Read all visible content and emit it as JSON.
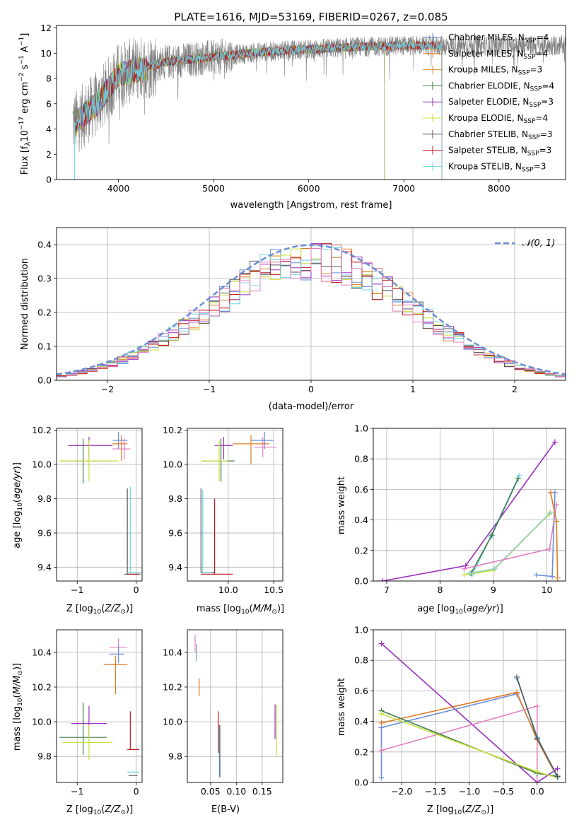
{
  "chart_data": [
    {
      "type": "line",
      "title": "PLATE=1616, MJD=53169, FIBERID=0267, z=0.085",
      "xlabel": "wavelength [Angstrom, rest frame]",
      "ylabel": "Flux [fλ10⁻¹⁷ erg cm⁻² s⁻¹ A⁻¹]",
      "xlim": [
        3350,
        8700
      ],
      "ylim": [
        0,
        12.2
      ],
      "xticks": [
        4000,
        5000,
        6000,
        7000,
        8000
      ],
      "yticks": [
        0,
        2,
        4,
        6,
        8,
        10,
        12
      ],
      "legend_position": "right",
      "series": [
        {
          "name": "Chabrier MILES, N_SSP=4",
          "color": "#6b8fd6",
          "x": [
            3550,
            7400
          ],
          "points": [
            [
              3550,
              4.5
            ],
            [
              3800,
              6.2
            ],
            [
              4000,
              8.3
            ],
            [
              4500,
              9.3
            ],
            [
              5000,
              9.7
            ],
            [
              5500,
              10.1
            ],
            [
              6000,
              10.3
            ],
            [
              6500,
              10.5
            ],
            [
              7000,
              10.6
            ],
            [
              7400,
              10.6
            ]
          ]
        },
        {
          "name": "Salpeter MILES, N_SSP=4",
          "color": "#e07b28",
          "points": [
            [
              3550,
              4.4
            ],
            [
              3800,
              6.2
            ],
            [
              4000,
              8.2
            ],
            [
              4500,
              9.3
            ],
            [
              5000,
              9.7
            ],
            [
              5500,
              10.1
            ],
            [
              6000,
              10.3
            ],
            [
              6500,
              10.5
            ],
            [
              7000,
              10.6
            ],
            [
              7400,
              10.6
            ]
          ]
        },
        {
          "name": "Kroupa MILES, N_SSP=3",
          "color": "#e08a2a",
          "points": [
            [
              3550,
              4.4
            ],
            [
              3800,
              6.1
            ],
            [
              4000,
              8.2
            ],
            [
              4500,
              9.3
            ],
            [
              5000,
              9.7
            ],
            [
              5500,
              10.1
            ],
            [
              6000,
              10.3
            ],
            [
              6500,
              10.5
            ],
            [
              7000,
              10.6
            ],
            [
              7400,
              10.6
            ]
          ]
        },
        {
          "name": "Chabrier ELODIE, N_SSP=4",
          "color": "#3c7a46",
          "points": [
            [
              3550,
              4.5
            ],
            [
              3800,
              6.2
            ],
            [
              4000,
              8.3
            ],
            [
              4500,
              9.3
            ],
            [
              5000,
              9.7
            ],
            [
              5500,
              10.1
            ],
            [
              6000,
              10.3
            ],
            [
              6500,
              10.5
            ],
            [
              6800,
              10.6
            ]
          ]
        },
        {
          "name": "Salpeter ELODIE, N_SSP=3",
          "color": "#9a2fbf",
          "points": [
            [
              3550,
              4.5
            ],
            [
              3800,
              6.2
            ],
            [
              4000,
              8.3
            ],
            [
              4500,
              9.3
            ],
            [
              5000,
              9.7
            ],
            [
              5500,
              10.1
            ],
            [
              6000,
              10.3
            ],
            [
              6500,
              10.5
            ],
            [
              6800,
              10.6
            ]
          ]
        },
        {
          "name": "Kroupa ELODIE, N_SSP=4",
          "color": "#c6e03a",
          "points": [
            [
              3550,
              4.5
            ],
            [
              3800,
              6.2
            ],
            [
              4000,
              8.3
            ],
            [
              4500,
              9.3
            ],
            [
              5000,
              9.7
            ],
            [
              5500,
              10.1
            ],
            [
              6000,
              10.3
            ],
            [
              6500,
              10.5
            ],
            [
              6800,
              10.6
            ]
          ]
        },
        {
          "name": "Chabrier STELIB, N_SSP=3",
          "color": "#555555",
          "points": [
            [
              3550,
              4.5
            ],
            [
              3800,
              6.2
            ],
            [
              4000,
              8.3
            ],
            [
              4500,
              9.3
            ],
            [
              5000,
              9.7
            ],
            [
              5500,
              10.1
            ],
            [
              6000,
              10.3
            ],
            [
              6500,
              10.5
            ],
            [
              7000,
              10.6
            ],
            [
              7400,
              10.6
            ]
          ]
        },
        {
          "name": "Salpeter STELIB, N_SSP=3",
          "color": "#c0181e",
          "points": [
            [
              3550,
              4.5
            ],
            [
              3800,
              6.2
            ],
            [
              4000,
              8.3
            ],
            [
              4500,
              9.3
            ],
            [
              5000,
              9.7
            ],
            [
              5500,
              10.1
            ],
            [
              6000,
              10.3
            ],
            [
              6500,
              10.5
            ],
            [
              7000,
              10.6
            ],
            [
              7400,
              10.6
            ]
          ]
        },
        {
          "name": "Kroupa STELIB, N_SSP=3",
          "color": "#6fd4e6",
          "points": [
            [
              3550,
              4.5
            ],
            [
              3800,
              6.2
            ],
            [
              4000,
              8.3
            ],
            [
              4500,
              9.3
            ],
            [
              5000,
              9.7
            ],
            [
              5500,
              10.1
            ],
            [
              6000,
              10.3
            ],
            [
              6500,
              10.5
            ],
            [
              7000,
              10.6
            ],
            [
              7400,
              10.6
            ]
          ]
        }
      ],
      "data_spectrum_color": "#808080"
    },
    {
      "type": "line",
      "xlabel": "(data-model)/error",
      "ylabel": "Normed distribution",
      "xlim": [
        -2.5,
        2.5
      ],
      "ylim": [
        0,
        0.45
      ],
      "xticks": [
        -2,
        -1,
        0,
        1,
        2
      ],
      "yticks": [
        0.0,
        0.1,
        0.2,
        0.3,
        0.4
      ],
      "legend": [
        {
          "name": "𝒩(0, 1)",
          "color": "#6b8fd6",
          "style": "dashed"
        }
      ],
      "legend_position": "top-right",
      "grid": true
    },
    {
      "type": "scatter",
      "xlabel": "Z [log₁₀(Z/Z⊙)]",
      "ylabel": "age  [log₁₀(age/yr)]",
      "xlim": [
        -1.35,
        0.1
      ],
      "ylim": [
        9.32,
        10.21
      ],
      "xticks": [
        -1,
        0
      ],
      "yticks": [
        9.4,
        9.6,
        9.8,
        10.0,
        10.2
      ],
      "grid": true
    },
    {
      "type": "scatter",
      "xlabel": "mass [log₁₀(M/M⊙)]",
      "xlim": [
        9.55,
        10.6
      ],
      "ylim": [
        9.32,
        10.21
      ],
      "xticks": [
        10.0,
        10.5
      ],
      "yticks": [
        9.4,
        9.6,
        9.8,
        10.0,
        10.2
      ],
      "grid": true
    },
    {
      "type": "line",
      "xlabel": "age  [log₁₀(age/yr)]",
      "ylabel": "mass weight",
      "xlim": [
        6.75,
        10.35
      ],
      "ylim": [
        0,
        1.0
      ],
      "xticks": [
        7,
        8,
        9,
        10
      ],
      "yticks": [
        0.0,
        0.2,
        0.4,
        0.6,
        0.8,
        1.0
      ],
      "grid": true
    },
    {
      "type": "scatter",
      "xlabel": "Z [log₁₀(Z/Z⊙)]",
      "ylabel": "mass [log₁₀(M/M⊙)]",
      "xlim": [
        -1.35,
        0.1
      ],
      "ylim": [
        9.65,
        10.53
      ],
      "xticks": [
        -1,
        0
      ],
      "yticks": [
        9.8,
        10.0,
        10.2,
        10.4
      ],
      "grid": true
    },
    {
      "type": "scatter",
      "xlabel": "E(B-V)",
      "xlim": [
        0.005,
        0.19
      ],
      "ylim": [
        9.65,
        10.53
      ],
      "xticks": [
        0.05,
        0.1,
        0.15
      ],
      "yticks": [
        9.8,
        10.0,
        10.2,
        10.4
      ],
      "grid": true
    },
    {
      "type": "line",
      "xlabel": "Z [log₁₀(Z/Z⊙)]",
      "ylabel": "mass weight",
      "xlim": [
        -2.42,
        0.42
      ],
      "ylim": [
        0,
        1.0
      ],
      "xticks": [
        -2.0,
        -1.5,
        -1.0,
        -0.5,
        0.0
      ],
      "yticks": [
        0.0,
        0.2,
        0.4,
        0.6,
        0.8,
        1.0
      ],
      "grid": true
    }
  ],
  "colors": {
    "chabrier_miles": "#6b8fd6",
    "salpeter_miles": "#e07b28",
    "kroupa_miles": "#e08a2a",
    "chabrier_elodie": "#3c7a46",
    "salpeter_elodie": "#9a2fbf",
    "kroupa_elodie": "#c6e03a",
    "chabrier_stelib": "#555555",
    "salpeter_stelib": "#c0181e",
    "kroupa_stelib": "#6fd4e6",
    "pink": "#e37fbf"
  },
  "hist_colors": [
    "#6b8fd6",
    "#e07b28",
    "#9a2fbf",
    "#c6e03a",
    "#555555",
    "#c0181e",
    "#6fd4e6",
    "#e37fbf"
  ],
  "age_mass_weight": [
    {
      "color": "#9a2fbf",
      "points": [
        [
          6.92,
          0.0
        ],
        [
          8.48,
          0.1
        ],
        [
          10.15,
          0.91
        ]
      ]
    },
    {
      "color": "#6fd4e6",
      "points": [
        [
          8.6,
          0.04
        ],
        [
          8.95,
          0.29
        ],
        [
          9.48,
          0.69
        ]
      ]
    },
    {
      "color": "#3c7a46",
      "points": [
        [
          8.58,
          0.05
        ],
        [
          8.97,
          0.3
        ],
        [
          9.46,
          0.67
        ]
      ]
    },
    {
      "color": "#c6e03a",
      "points": [
        [
          8.45,
          0.04
        ],
        [
          9.0,
          0.07
        ],
        [
          10.05,
          0.44
        ]
      ]
    },
    {
      "color": "#8fd0c0",
      "points": [
        [
          8.55,
          0.05
        ],
        [
          9.02,
          0.08
        ],
        [
          10.07,
          0.45
        ]
      ]
    },
    {
      "color": "#e37fbf",
      "points": [
        [
          8.45,
          0.08
        ],
        [
          10.05,
          0.21
        ],
        [
          10.18,
          0.5
        ]
      ]
    },
    {
      "color": "#6b8fd6",
      "points": [
        [
          9.8,
          0.04
        ],
        [
          10.1,
          0.03
        ],
        [
          10.15,
          0.58
        ]
      ]
    },
    {
      "color": "#e07b28",
      "points": [
        [
          10.07,
          0.58
        ],
        [
          10.18,
          0.39
        ],
        [
          10.2,
          0.02
        ]
      ]
    }
  ],
  "z_mass_weight": [
    {
      "color": "#9a2fbf",
      "points": [
        [
          -2.3,
          0.91
        ],
        [
          0.0,
          0.0
        ],
        [
          0.3,
          0.09
        ]
      ]
    },
    {
      "color": "#6b8fd6",
      "points": [
        [
          -2.3,
          0.03
        ],
        [
          -2.3,
          0.36
        ],
        [
          -0.3,
          0.58
        ],
        [
          0.0,
          0.29
        ],
        [
          0.3,
          0.04
        ]
      ]
    },
    {
      "color": "#e07b28",
      "points": [
        [
          -2.3,
          0.39
        ],
        [
          -0.3,
          0.59
        ],
        [
          0.0,
          0.28
        ],
        [
          0.3,
          0.03
        ]
      ]
    },
    {
      "color": "#e37fbf",
      "points": [
        [
          -2.3,
          0.21
        ],
        [
          0.0,
          0.5
        ],
        [
          0.0,
          0.0
        ]
      ]
    },
    {
      "color": "#3c7a46",
      "points": [
        [
          -2.3,
          0.47
        ],
        [
          0.0,
          0.06
        ],
        [
          0.3,
          0.04
        ]
      ]
    },
    {
      "color": "#c6e03a",
      "points": [
        [
          -2.3,
          0.45
        ],
        [
          0.0,
          0.07
        ],
        [
          0.3,
          0.03
        ]
      ]
    },
    {
      "color": "#6fd4e6",
      "points": [
        [
          -0.3,
          0.68
        ],
        [
          0.0,
          0.3
        ],
        [
          0.3,
          0.03
        ]
      ]
    },
    {
      "color": "#555555",
      "points": [
        [
          -0.3,
          0.69
        ],
        [
          0.0,
          0.29
        ],
        [
          0.3,
          0.04
        ]
      ]
    }
  ]
}
